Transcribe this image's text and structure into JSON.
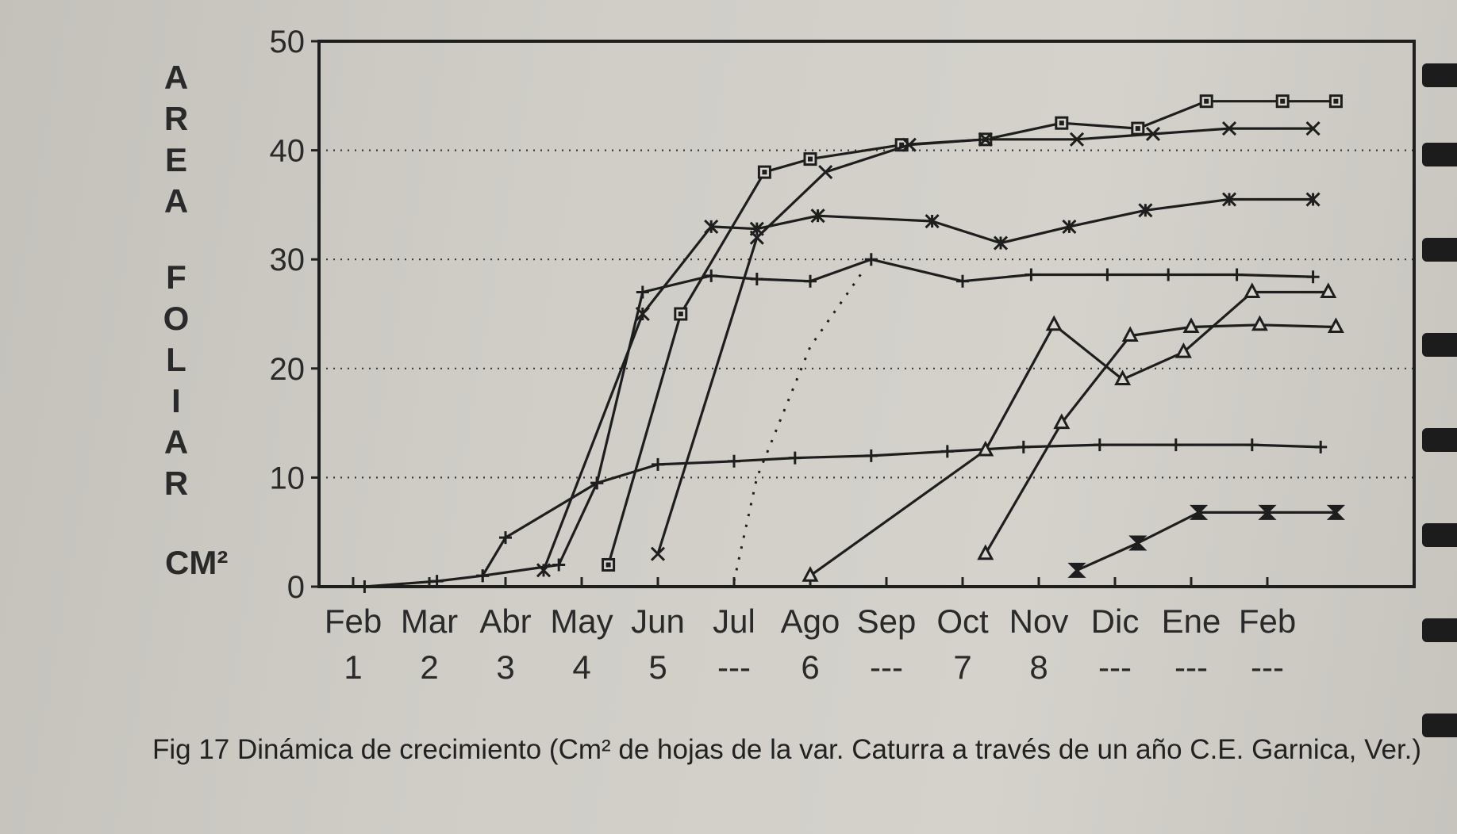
{
  "chart_data": {
    "type": "line",
    "ylabel_letters": [
      "A",
      "R",
      "E",
      "A",
      "F",
      "O",
      "L",
      "I",
      "A",
      "R"
    ],
    "y_unit": "CM²",
    "ylim": [
      0,
      50
    ],
    "yticks": [
      "0",
      "10",
      "20",
      "30",
      "40",
      "50"
    ],
    "x_months": [
      "Feb",
      "Mar",
      "Abr",
      "May",
      "Jun",
      "Jul",
      "Ago",
      "Sep",
      "Oct",
      "Nov",
      "Dic",
      "Ene",
      "Feb"
    ],
    "x_sub": [
      "1",
      "2",
      "3",
      "4",
      "5",
      "---",
      "6",
      "---",
      "7",
      "8",
      "---",
      "---",
      "---"
    ],
    "grid": "dotted horizontal at 10, 20, 30, 40",
    "series": [
      {
        "style": "solid",
        "marker": "plus",
        "x": [
          0.15,
          1.1,
          1.7,
          2.7,
          3.2,
          4.0,
          5.0,
          5.8,
          6.8,
          7.8,
          8.8,
          9.8,
          10.8,
          11.8,
          12.7
        ],
        "y": [
          0,
          0.5,
          1.0,
          2,
          9.5,
          11.2,
          11.5,
          11.8,
          12.0,
          12.4,
          12.8,
          13.0,
          13.0,
          13.0,
          12.8
        ]
      },
      {
        "style": "solid",
        "marker": "plus",
        "x": [
          1.7,
          2.0,
          3.2,
          3.8,
          4.7,
          5.3,
          6.0,
          6.8,
          8.0,
          8.9,
          9.9,
          10.7,
          11.6,
          12.6
        ],
        "y": [
          1,
          4.5,
          9.5,
          27,
          28.5,
          28.2,
          28,
          30,
          28,
          28.6,
          28.6,
          28.6,
          28.6,
          28.4
        ]
      },
      {
        "style": "solid",
        "marker": "star",
        "x": [
          2.5,
          3.8,
          4.7,
          5.3,
          6.1,
          7.6,
          8.5,
          9.4,
          10.4,
          11.5,
          12.6
        ],
        "y": [
          1.5,
          25,
          33,
          32.8,
          34,
          33.5,
          31.5,
          33,
          34.5,
          35.5,
          35.5
        ]
      },
      {
        "style": "solid",
        "marker": "filled-square",
        "x": [
          3.35,
          4.3,
          5.4,
          6.0,
          7.2,
          8.3,
          9.3,
          10.3,
          11.2,
          12.2,
          12.9
        ],
        "y": [
          2,
          25,
          38,
          39.2,
          40.5,
          41,
          42.5,
          42,
          44.5,
          44.5,
          44.5
        ]
      },
      {
        "style": "solid",
        "marker": "x",
        "x": [
          4.0,
          5.3,
          6.2,
          7.3,
          8.3,
          9.5,
          10.5,
          11.5,
          12.6
        ],
        "y": [
          3,
          32,
          38,
          40.5,
          41,
          41,
          41.5,
          42,
          42
        ]
      },
      {
        "style": "dotted",
        "marker": "none",
        "x": [
          5.0,
          5.3,
          6.0,
          6.7
        ],
        "y": [
          0.5,
          10,
          22,
          29
        ]
      },
      {
        "style": "solid",
        "marker": "triangle",
        "x": [
          6.0,
          8.3,
          9.2,
          10.1,
          10.9,
          11.8,
          12.8
        ],
        "y": [
          1.0,
          12.5,
          24,
          19,
          21.5,
          27.0,
          27.0
        ]
      },
      {
        "style": "solid",
        "marker": "triangle",
        "x": [
          8.3,
          9.3,
          10.2,
          11.0,
          11.9,
          12.9
        ],
        "y": [
          3.0,
          15,
          23,
          23.8,
          24,
          23.8
        ]
      },
      {
        "style": "solid",
        "marker": "hourglass",
        "x": [
          9.5,
          10.3,
          11.1,
          12.0,
          12.9
        ],
        "y": [
          1.5,
          4,
          6.8,
          6.8,
          6.8
        ]
      }
    ]
  },
  "caption": "Fig 17 Dinámica de crecimiento (Cm² de hojas de la var. Caturra a través de un año C.E. Garnica, Ver.)"
}
